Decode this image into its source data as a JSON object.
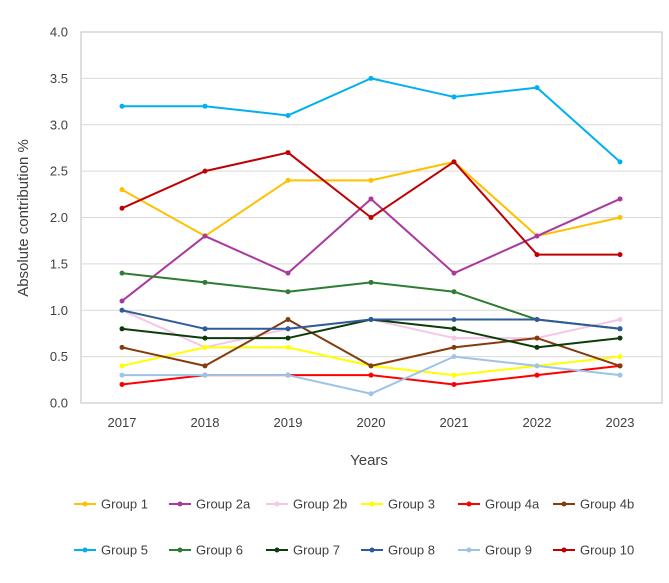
{
  "chart_data": {
    "type": "line",
    "title": "",
    "xlabel": "Years",
    "ylabel": "Absolute contribution %",
    "x": [
      "2017",
      "2018",
      "2019",
      "2020",
      "2021",
      "2022",
      "2023"
    ],
    "ylim": [
      0.0,
      4.0
    ],
    "yticks": [
      "0.0",
      "0.5",
      "1.0",
      "1.5",
      "2.0",
      "2.5",
      "3.0",
      "3.5",
      "4.0"
    ],
    "grid": true,
    "legend_position": "bottom",
    "series": [
      {
        "name": "Group 1",
        "color": "#FFC000",
        "values": [
          2.3,
          1.8,
          2.4,
          2.4,
          2.6,
          1.8,
          2.0
        ]
      },
      {
        "name": "Group 2a",
        "color": "#A9399E",
        "values": [
          1.1,
          1.8,
          1.4,
          2.2,
          1.4,
          1.8,
          2.2
        ]
      },
      {
        "name": "Group 2b",
        "color": "#F4C7E8",
        "values": [
          1.0,
          0.6,
          0.8,
          0.9,
          0.7,
          0.7,
          0.9
        ]
      },
      {
        "name": "Group 3",
        "color": "#FFFF00",
        "values": [
          0.4,
          0.6,
          0.6,
          0.4,
          0.3,
          0.4,
          0.5
        ]
      },
      {
        "name": "Group 4a",
        "color": "#FF0000",
        "values": [
          0.2,
          0.3,
          0.3,
          0.3,
          0.2,
          0.3,
          0.4
        ]
      },
      {
        "name": "Group 4b",
        "color": "#843C0C",
        "values": [
          0.6,
          0.4,
          0.9,
          0.4,
          0.6,
          0.7,
          0.4
        ]
      },
      {
        "name": "Group 5",
        "color": "#00B0F0",
        "values": [
          3.2,
          3.2,
          3.1,
          3.5,
          3.3,
          3.4,
          2.6
        ]
      },
      {
        "name": "Group 6",
        "color": "#2E7D32",
        "values": [
          1.4,
          1.3,
          1.2,
          1.3,
          1.2,
          0.9,
          0.8
        ]
      },
      {
        "name": "Group 7",
        "color": "#0B3D0B",
        "values": [
          0.8,
          0.7,
          0.7,
          0.9,
          0.8,
          0.6,
          0.7
        ]
      },
      {
        "name": "Group 8",
        "color": "#2E5C9A",
        "values": [
          1.0,
          0.8,
          0.8,
          0.9,
          0.9,
          0.9,
          0.8
        ]
      },
      {
        "name": "Group 9",
        "color": "#9DC3E6",
        "values": [
          0.3,
          0.3,
          0.3,
          0.1,
          0.5,
          0.4,
          0.3
        ]
      },
      {
        "name": "Group 10",
        "color": "#C00000",
        "values": [
          2.1,
          2.5,
          2.7,
          2.0,
          2.6,
          1.6,
          1.6
        ]
      }
    ]
  },
  "colors": {
    "gridline": "#D9D9D9",
    "axis": "#BFBFBF",
    "text": "#404040"
  }
}
